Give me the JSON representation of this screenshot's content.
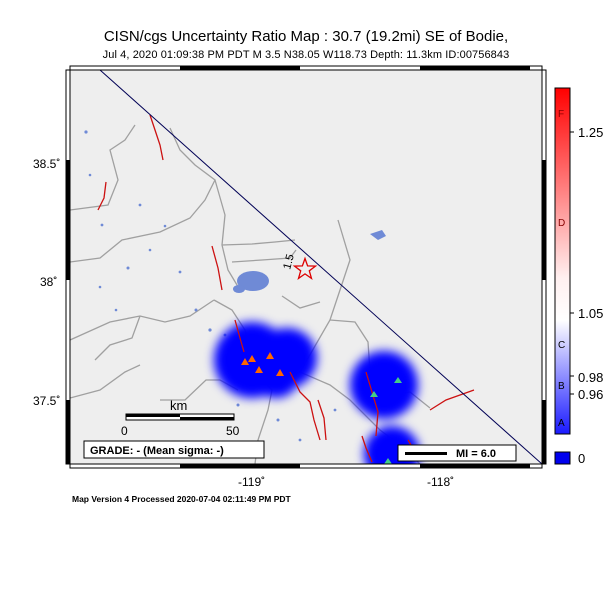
{
  "map": {
    "title": "CISN/cgs Uncertainty Ratio Map : 30.7 (19.2mi) SE of Bodie,",
    "subtitle": "Jul  4, 2020 01:09:38 PM PDT   M 3.5   N38.05 W118.73   Depth: 11.3km   ID:00756843",
    "footer": "Map Version 4 Processed 2020-07-04 02:11:49 PM PDT",
    "lat_labels": [
      "38.5˚",
      "38˚",
      "37.5˚"
    ],
    "lon_labels": [
      "-119˚",
      "-118˚"
    ],
    "scale_title": "km",
    "scale_labels": [
      "0",
      "50"
    ],
    "grade_label": "GRADE: - (Mean sigma: -)",
    "mi_label": "MI = 6.0",
    "epicenter_label": "1.5",
    "colors": {
      "land": "#eeeeee",
      "water": "#6f8ad6",
      "fault": "#cc1111",
      "border": "#999999",
      "uncertainty": "#0000ff"
    }
  },
  "colorbar": {
    "letters": [
      "F",
      "D",
      "C",
      "B",
      "A"
    ],
    "tick_labels": [
      "1.25",
      "1.05",
      "0.98",
      "0.96",
      "0"
    ],
    "colors": {
      "top": "#ff0000",
      "mid": "#ffffff",
      "bottom": "#0000ff",
      "box": "#0000ff"
    }
  }
}
